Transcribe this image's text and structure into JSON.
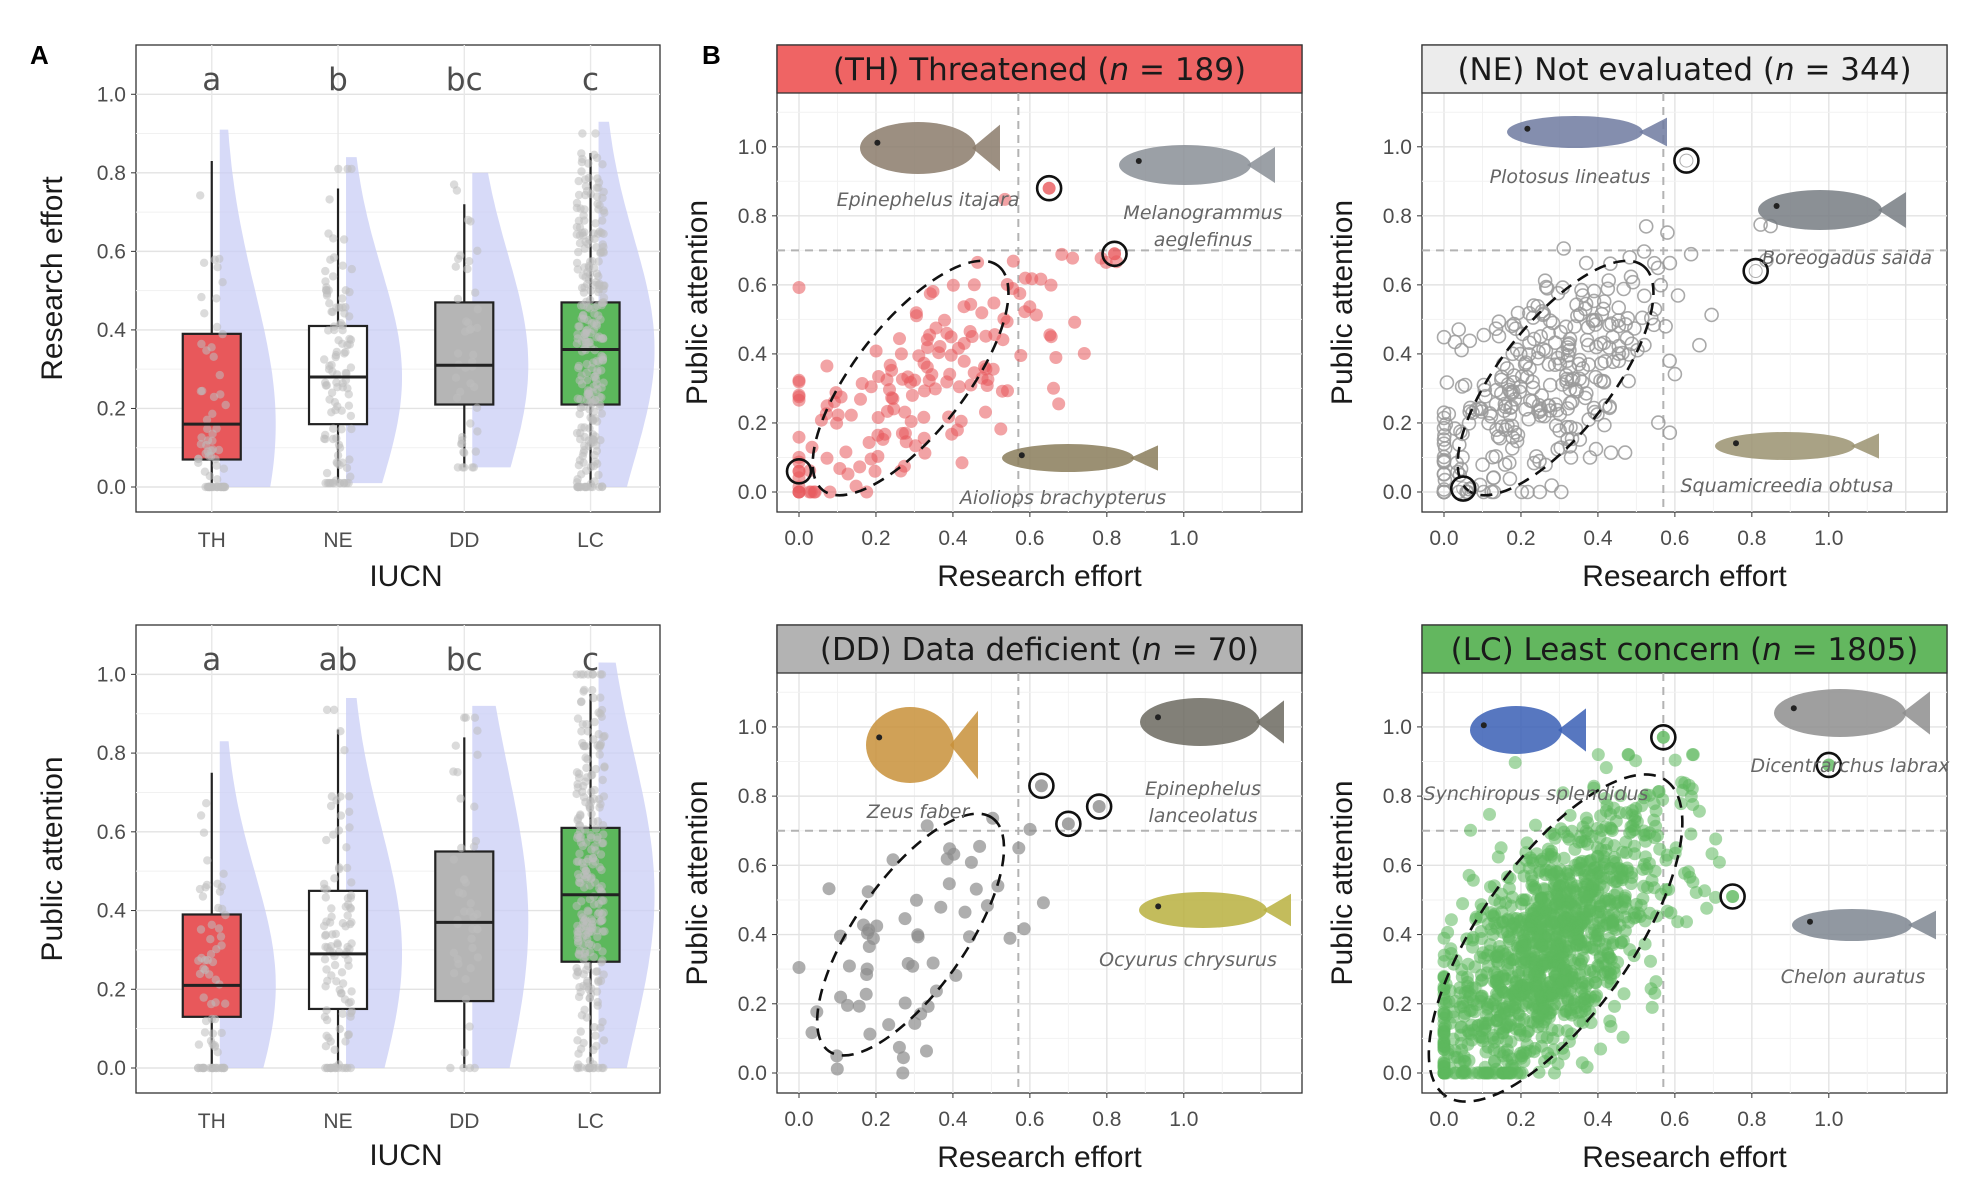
{
  "figure": {
    "panel_a_letter": "A",
    "panel_b_letter": "B"
  },
  "colors": {
    "TH": "#e8585b",
    "NE": "#ffffff",
    "DD": "#b5b5b5",
    "LC": "#5cb85c",
    "violin": "#c9cdf5",
    "jitter": "#bdbdbd",
    "strip_TH": "#ef6464",
    "strip_NE": "#ececec",
    "strip_DD": "#b3b3b3",
    "strip_LC": "#63b75f"
  },
  "chart_data": [
    {
      "type": "box",
      "id": "box-research",
      "xlabel": "IUCN",
      "ylabel": "Research effort",
      "ylim": [
        0,
        1.1
      ],
      "yticks": [
        "0.0",
        "0.2",
        "0.4",
        "0.6",
        "0.8",
        "1.0"
      ],
      "categories": [
        "TH",
        "NE",
        "DD",
        "LC"
      ],
      "letters": [
        "a",
        "b",
        "bc",
        "c"
      ],
      "boxes": [
        {
          "cat": "TH",
          "lower_whisker": 0.0,
          "q1": 0.07,
          "median": 0.16,
          "q3": 0.39,
          "upper_whisker": 0.83
        },
        {
          "cat": "NE",
          "lower_whisker": 0.01,
          "q1": 0.16,
          "median": 0.28,
          "q3": 0.41,
          "upper_whisker": 0.76
        },
        {
          "cat": "DD",
          "lower_whisker": 0.05,
          "q1": 0.21,
          "median": 0.31,
          "q3": 0.47,
          "upper_whisker": 0.72
        },
        {
          "cat": "LC",
          "lower_whisker": 0.0,
          "q1": 0.21,
          "median": 0.35,
          "q3": 0.47,
          "upper_whisker": 0.85
        }
      ],
      "grid": true
    },
    {
      "type": "box",
      "id": "box-attention",
      "xlabel": "IUCN",
      "ylabel": "Public attention",
      "ylim": [
        0,
        1.1
      ],
      "yticks": [
        "0.0",
        "0.2",
        "0.4",
        "0.6",
        "0.8",
        "1.0"
      ],
      "categories": [
        "TH",
        "NE",
        "DD",
        "LC"
      ],
      "letters": [
        "a",
        "ab",
        "bc",
        "c"
      ],
      "boxes": [
        {
          "cat": "TH",
          "lower_whisker": 0.0,
          "q1": 0.13,
          "median": 0.21,
          "q3": 0.39,
          "upper_whisker": 0.75
        },
        {
          "cat": "NE",
          "lower_whisker": 0.0,
          "q1": 0.15,
          "median": 0.29,
          "q3": 0.45,
          "upper_whisker": 0.86
        },
        {
          "cat": "DD",
          "lower_whisker": 0.0,
          "q1": 0.17,
          "median": 0.37,
          "q3": 0.55,
          "upper_whisker": 0.84
        },
        {
          "cat": "LC",
          "lower_whisker": 0.0,
          "q1": 0.27,
          "median": 0.44,
          "q3": 0.61,
          "upper_whisker": 0.95
        }
      ],
      "grid": true
    },
    {
      "type": "scatter",
      "id": "scatter-TH",
      "title": "(TH) Threatened (n = 189)",
      "title_prefix": "(TH) Threatened (",
      "title_n": "n",
      "title_suffix": " = 189)",
      "xlabel": "Research effort",
      "ylabel": "Public attention",
      "xlim": [
        0,
        1.25
      ],
      "ylim": [
        0,
        1.15
      ],
      "xticks": [
        "0.0",
        "0.2",
        "0.4",
        "0.6",
        "0.8",
        "1.0"
      ],
      "yticks": [
        "0.0",
        "0.2",
        "0.4",
        "0.6",
        "0.8",
        "1.0"
      ],
      "vline": 0.57,
      "hline": 0.7,
      "ellipse": {
        "cx": 0.29,
        "cy": 0.33,
        "rx": 0.37,
        "ry": 0.16,
        "angle_deg": 52
      },
      "highlight": [
        [
          0.0,
          0.06
        ],
        [
          0.65,
          0.88
        ],
        [
          0.82,
          0.69
        ]
      ],
      "species_labels": [
        "Epinephelus itajara",
        "Melanogrammus",
        "aeglefinus",
        "Aioliops brachypterus"
      ],
      "grid": true
    },
    {
      "type": "scatter",
      "id": "scatter-NE",
      "title": "(NE) Not evaluated (n = 344)",
      "title_prefix": "(NE) Not evaluated (",
      "title_n": "n",
      "title_suffix": " = 344)",
      "xlabel": "Research effort",
      "ylabel": "Public attention",
      "xlim": [
        0,
        1.25
      ],
      "ylim": [
        0,
        1.15
      ],
      "xticks": [
        "0.0",
        "0.2",
        "0.4",
        "0.6",
        "0.8",
        "1.0"
      ],
      "yticks": [
        "0.0",
        "0.2",
        "0.4",
        "0.6",
        "0.8",
        "1.0"
      ],
      "vline": 0.57,
      "hline": 0.7,
      "ellipse": {
        "cx": 0.29,
        "cy": 0.33,
        "rx": 0.37,
        "ry": 0.16,
        "angle_deg": 52
      },
      "highlight": [
        [
          0.05,
          0.01
        ],
        [
          0.63,
          0.96
        ],
        [
          0.81,
          0.64
        ]
      ],
      "species_labels": [
        "Plotosus lineatus",
        "Boreogadus saida",
        "Squamicreedia obtusa"
      ],
      "grid": true
    },
    {
      "type": "scatter",
      "id": "scatter-DD",
      "title": "(DD) Data deficient (n = 70)",
      "title_prefix": "(DD) Data deficient (",
      "title_n": "n",
      "title_suffix": " = 70)",
      "xlabel": "Research effort",
      "ylabel": "Public attention",
      "xlim": [
        0,
        1.25
      ],
      "ylim": [
        0,
        1.15
      ],
      "xticks": [
        "0.0",
        "0.2",
        "0.4",
        "0.6",
        "0.8",
        "1.0"
      ],
      "yticks": [
        "0.0",
        "0.2",
        "0.4",
        "0.6",
        "0.8",
        "1.0"
      ],
      "vline": 0.57,
      "hline": 0.7,
      "ellipse": {
        "cx": 0.29,
        "cy": 0.4,
        "rx": 0.37,
        "ry": 0.16,
        "angle_deg": 55
      },
      "highlight": [
        [
          0.63,
          0.83
        ],
        [
          0.7,
          0.72
        ],
        [
          0.78,
          0.77
        ]
      ],
      "species_labels": [
        "Zeus faber",
        "Epinephelus",
        "lanceolatus",
        "Ocyurus chrysurus"
      ],
      "grid": true
    },
    {
      "type": "scatter",
      "id": "scatter-LC",
      "title": "(LC) Least concern (n = 1805)",
      "title_prefix": "(LC) Least concern (",
      "title_n": "n",
      "title_suffix": " = 1805)",
      "xlabel": "Research effort",
      "ylabel": "Public attention",
      "xlim": [
        0,
        1.25
      ],
      "ylim": [
        0,
        1.15
      ],
      "xticks": [
        "0.0",
        "0.2",
        "0.4",
        "0.6",
        "0.8",
        "1.0"
      ],
      "yticks": [
        "0.0",
        "0.2",
        "0.4",
        "0.6",
        "0.8",
        "1.0"
      ],
      "vline": 0.57,
      "hline": 0.7,
      "ellipse": {
        "cx": 0.29,
        "cy": 0.39,
        "rx": 0.5,
        "ry": 0.22,
        "angle_deg": 55
      },
      "highlight": [
        [
          0.57,
          0.97
        ],
        [
          0.75,
          0.51
        ],
        [
          1.0,
          0.89
        ]
      ],
      "species_labels": [
        "Synchiropus splendidus",
        "Dicentrarchus labrax",
        "Chelon auratus"
      ],
      "grid": true
    }
  ]
}
